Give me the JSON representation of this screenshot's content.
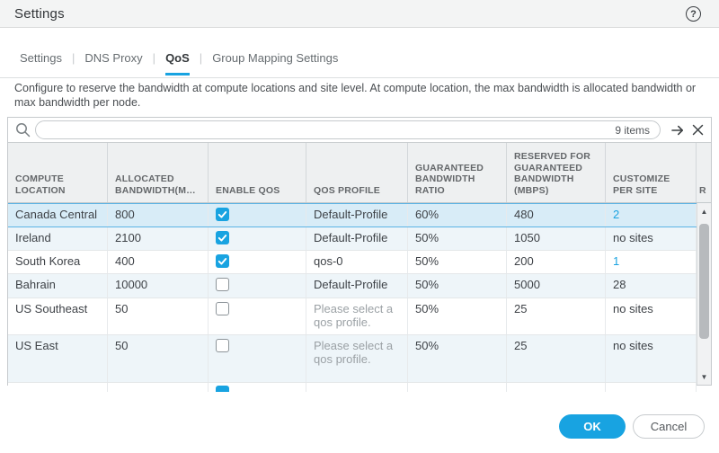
{
  "window": {
    "title": "Settings",
    "help_glyph": "?"
  },
  "tabs": {
    "items": [
      {
        "label": "Settings",
        "active": false
      },
      {
        "label": "DNS Proxy",
        "active": false
      },
      {
        "label": "QoS",
        "active": true
      },
      {
        "label": "Group Mapping Settings",
        "active": false
      }
    ]
  },
  "description": "Configure to reserve the bandwidth at compute locations and site level. At compute location, the max bandwidth is allocated bandwidth or max bandwidth per node.",
  "search": {
    "value": "",
    "items_count": "9 items"
  },
  "table": {
    "columns": [
      "COMPUTE LOCATION",
      "ALLOCATED BANDWIDTH(M…",
      "ENABLE QOS",
      "QOS PROFILE",
      "GUARANTEED BANDWIDTH RATIO",
      "RESERVED FOR GUARANTEED BANDWIDTH (MBPS)",
      "CUSTOMIZE PER SITE",
      "R"
    ],
    "rows": [
      {
        "location": "Canada Central",
        "allocated": "800",
        "qos_enabled": true,
        "profile": "Default-Profile",
        "profile_placeholder": false,
        "ratio": "60%",
        "reserved": "480",
        "customize": "2",
        "customize_is_link": true,
        "selected": true
      },
      {
        "location": "Ireland",
        "allocated": "2100",
        "qos_enabled": true,
        "profile": "Default-Profile",
        "profile_placeholder": false,
        "ratio": "50%",
        "reserved": "1050",
        "customize": "no sites",
        "customize_is_link": false,
        "selected": false
      },
      {
        "location": "South Korea",
        "allocated": "400",
        "qos_enabled": true,
        "profile": "qos-0",
        "profile_placeholder": false,
        "ratio": "50%",
        "reserved": "200",
        "customize": "1",
        "customize_is_link": true,
        "selected": false
      },
      {
        "location": "Bahrain",
        "allocated": "10000",
        "qos_enabled": false,
        "profile": "Default-Profile",
        "profile_placeholder": false,
        "ratio": "50%",
        "reserved": "5000",
        "customize": "28",
        "customize_is_link": false,
        "selected": false
      },
      {
        "location": "US Southeast",
        "allocated": "50",
        "qos_enabled": false,
        "profile": "Please select a qos profile.",
        "profile_placeholder": true,
        "ratio": "50%",
        "reserved": "25",
        "customize": "no sites",
        "customize_is_link": false,
        "selected": false
      },
      {
        "location": "US East",
        "allocated": "50",
        "qos_enabled": false,
        "profile": "Please select a qos profile.",
        "profile_placeholder": true,
        "ratio": "50%",
        "reserved": "25",
        "customize": "no sites",
        "customize_is_link": false,
        "selected": false
      }
    ],
    "partial_row": {
      "qos_enabled": true
    }
  },
  "footer": {
    "ok_label": "OK",
    "cancel_label": "Cancel"
  },
  "colors": {
    "accent_blue": "#18a3e1",
    "link_blue": "#1ba3e1",
    "selected_row_bg": "#d8ecf7",
    "selected_row_border": "#5cb3e4",
    "stripe_row_bg": "#eef5f9",
    "header_bg": "#eef0f1",
    "topbar_bg": "#f3f4f4"
  }
}
